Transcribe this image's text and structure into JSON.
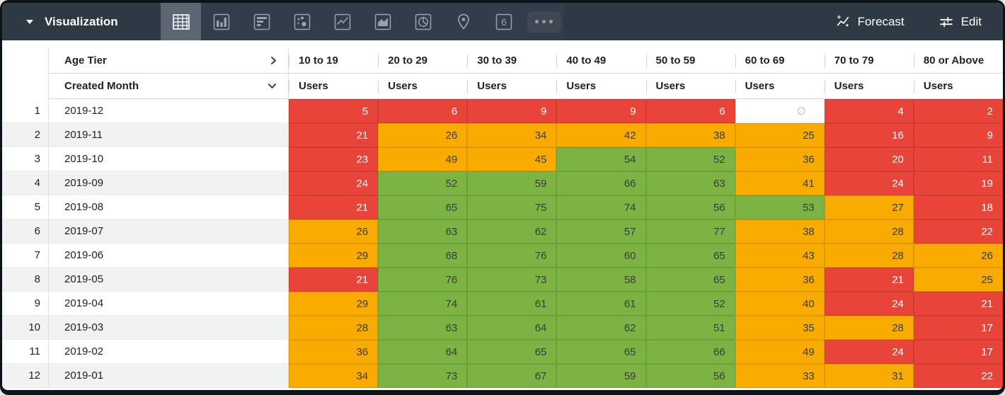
{
  "toolbar": {
    "title": "Visualization",
    "viz_types": [
      {
        "name": "table",
        "selected": true
      },
      {
        "name": "bar",
        "selected": false
      },
      {
        "name": "bar-horizontal",
        "selected": false
      },
      {
        "name": "scatter",
        "selected": false
      },
      {
        "name": "line",
        "selected": false
      },
      {
        "name": "area",
        "selected": false
      },
      {
        "name": "pie",
        "selected": false
      },
      {
        "name": "map",
        "selected": false
      },
      {
        "name": "single-value",
        "selected": false
      },
      {
        "name": "more",
        "selected": false
      }
    ],
    "forecast_label": "Forecast",
    "edit_label": "Edit"
  },
  "table": {
    "pivot_field": "Age Tier",
    "row_field": "Created Month",
    "measure_label": "Users",
    "columns": [
      "10 to 19",
      "20 to 29",
      "30 to 39",
      "40 to 49",
      "50 to 59",
      "60 to 69",
      "70 to 79",
      "80 or Above"
    ],
    "null_symbol": "∅",
    "rows": [
      {
        "n": 1,
        "month": "2019-12",
        "values": [
          5,
          6,
          9,
          9,
          6,
          null,
          4,
          2
        ],
        "colors": [
          "red",
          "red",
          "red",
          "red",
          "red",
          "null",
          "red",
          "red"
        ]
      },
      {
        "n": 2,
        "month": "2019-11",
        "values": [
          21,
          26,
          34,
          42,
          38,
          25,
          16,
          9
        ],
        "colors": [
          "red",
          "orange",
          "orange",
          "orange",
          "orange",
          "orange",
          "red",
          "red"
        ]
      },
      {
        "n": 3,
        "month": "2019-10",
        "values": [
          23,
          49,
          45,
          54,
          52,
          36,
          20,
          11
        ],
        "colors": [
          "red",
          "orange",
          "orange",
          "green",
          "green",
          "orange",
          "red",
          "red"
        ]
      },
      {
        "n": 4,
        "month": "2019-09",
        "values": [
          24,
          52,
          59,
          66,
          63,
          41,
          24,
          19
        ],
        "colors": [
          "red",
          "green",
          "green",
          "green",
          "green",
          "orange",
          "red",
          "red"
        ]
      },
      {
        "n": 5,
        "month": "2019-08",
        "values": [
          21,
          65,
          75,
          74,
          56,
          53,
          27,
          18
        ],
        "colors": [
          "red",
          "green",
          "green",
          "green",
          "green",
          "green",
          "orange",
          "red"
        ]
      },
      {
        "n": 6,
        "month": "2019-07",
        "values": [
          26,
          63,
          62,
          57,
          77,
          38,
          28,
          22
        ],
        "colors": [
          "orange",
          "green",
          "green",
          "green",
          "green",
          "orange",
          "orange",
          "red"
        ]
      },
      {
        "n": 7,
        "month": "2019-06",
        "values": [
          29,
          68,
          76,
          60,
          65,
          43,
          28,
          26
        ],
        "colors": [
          "orange",
          "green",
          "green",
          "green",
          "green",
          "orange",
          "orange",
          "orange"
        ]
      },
      {
        "n": 8,
        "month": "2019-05",
        "values": [
          21,
          76,
          73,
          58,
          65,
          36,
          21,
          25
        ],
        "colors": [
          "red",
          "green",
          "green",
          "green",
          "green",
          "orange",
          "red",
          "orange"
        ]
      },
      {
        "n": 9,
        "month": "2019-04",
        "values": [
          29,
          74,
          61,
          61,
          52,
          40,
          24,
          21
        ],
        "colors": [
          "orange",
          "green",
          "green",
          "green",
          "green",
          "orange",
          "red",
          "red"
        ]
      },
      {
        "n": 10,
        "month": "2019-03",
        "values": [
          28,
          63,
          64,
          62,
          51,
          35,
          28,
          17
        ],
        "colors": [
          "orange",
          "green",
          "green",
          "green",
          "green",
          "orange",
          "orange",
          "red"
        ]
      },
      {
        "n": 11,
        "month": "2019-02",
        "values": [
          36,
          64,
          65,
          65,
          66,
          49,
          24,
          17
        ],
        "colors": [
          "orange",
          "green",
          "green",
          "green",
          "green",
          "orange",
          "red",
          "red"
        ]
      },
      {
        "n": 12,
        "month": "2019-01",
        "values": [
          34,
          73,
          67,
          59,
          56,
          33,
          31,
          22
        ],
        "colors": [
          "orange",
          "green",
          "green",
          "green",
          "green",
          "orange",
          "orange",
          "red"
        ]
      }
    ]
  },
  "colors": {
    "red": "#e8443a",
    "orange": "#f9ab00",
    "green": "#7cb342",
    "text_on_red": "#ffffff",
    "text_on_orange": "#373c3f",
    "text_on_green": "#373c3f",
    "null_text": "#b4b8bd",
    "topbar_bg": "#2e3944",
    "selected_viz_bg": "#5c6673"
  }
}
